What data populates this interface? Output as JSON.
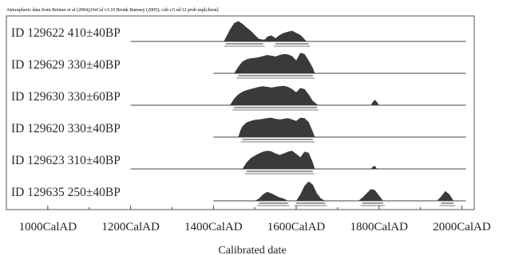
{
  "chart_data": {
    "type": "area",
    "title": "Atmospheric data from Reimer et al (2004);OxCal v3.10 Bronk Ramsey (2005); cub r:5 sd:12 prob usp[chron]",
    "xlabel": "Calibrated date",
    "ylabel": "",
    "x_unit": "CalAD",
    "xlim": [
      900,
      2030
    ],
    "x_ticks": [
      1000,
      1200,
      1400,
      1600,
      1800,
      2000
    ],
    "x_tick_labels": [
      "1000CalAD",
      "1200CalAD",
      "1400CalAD",
      "1600CalAD",
      "1800CalAD",
      "2000CalAD"
    ],
    "grid": false,
    "legend": "none",
    "colors": {
      "distribution": "#3a3a3a",
      "range_bar": "#777777",
      "axis": "#444444"
    },
    "series": [
      {
        "name": "ID 129622 410±40BP",
        "label": "ID 129622  410±40BP",
        "line_start": 1200,
        "x": [
          1425,
          1440,
          1450,
          1460,
          1470,
          1480,
          1490,
          1500,
          1510,
          1520,
          1525,
          1530,
          1540,
          1545,
          1550,
          1560,
          1570,
          1580,
          1590,
          1600,
          1610,
          1620,
          1625
        ],
        "y": [
          0,
          0.55,
          0.85,
          0.95,
          0.82,
          0.65,
          0.5,
          0.3,
          0.12,
          0.08,
          0.1,
          0.22,
          0.28,
          0.22,
          0.15,
          0.3,
          0.4,
          0.45,
          0.5,
          0.4,
          0.3,
          0.1,
          0
        ],
        "ranges": [
          [
            1430,
            1520
          ],
          [
            1550,
            1630
          ]
        ]
      },
      {
        "name": "ID 129629 330±40BP",
        "label": "ID 129629  330±40BP",
        "line_start": 1400,
        "x": [
          1450,
          1460,
          1470,
          1480,
          1490,
          1500,
          1510,
          1520,
          1530,
          1540,
          1550,
          1560,
          1570,
          1580,
          1590,
          1600,
          1610,
          1620,
          1630,
          1640,
          1645
        ],
        "y": [
          0,
          0.3,
          0.55,
          0.65,
          0.7,
          0.72,
          0.75,
          0.8,
          0.85,
          0.82,
          0.78,
          0.85,
          0.9,
          0.88,
          0.8,
          0.6,
          0.95,
          0.9,
          0.6,
          0.25,
          0
        ],
        "ranges": [
          [
            1460,
            1640
          ]
        ]
      },
      {
        "name": "ID 129630 330±60BP",
        "label": "ID 129630  330±60BP",
        "line_start": 1200,
        "x": [
          1440,
          1450,
          1460,
          1470,
          1480,
          1490,
          1500,
          1510,
          1520,
          1530,
          1540,
          1550,
          1560,
          1570,
          1580,
          1590,
          1600,
          1610,
          1620,
          1630,
          1640,
          1650,
          1655,
          1780,
          1785,
          1790,
          1795,
          1800
        ],
        "y": [
          0,
          0.3,
          0.5,
          0.62,
          0.7,
          0.75,
          0.8,
          0.85,
          0.88,
          0.85,
          0.82,
          0.85,
          0.88,
          0.9,
          0.85,
          0.75,
          0.6,
          0.8,
          0.75,
          0.5,
          0.2,
          0.05,
          0,
          0,
          0.15,
          0.25,
          0.15,
          0
        ],
        "ranges": [
          [
            1450,
            1650
          ]
        ]
      },
      {
        "name": "ID 129620 330±40BP",
        "label": "ID 129620  330±40BP",
        "line_start": 1400,
        "x": [
          1460,
          1465,
          1470,
          1480,
          1490,
          1500,
          1510,
          1520,
          1530,
          1540,
          1550,
          1560,
          1570,
          1580,
          1590,
          1600,
          1610,
          1620,
          1630,
          1640,
          1645
        ],
        "y": [
          0,
          0.3,
          0.5,
          0.68,
          0.75,
          0.8,
          0.82,
          0.85,
          0.88,
          0.9,
          0.85,
          0.82,
          0.85,
          0.88,
          0.82,
          0.75,
          0.9,
          0.88,
          0.7,
          0.25,
          0
        ],
        "ranges": [
          [
            1470,
            1640
          ]
        ]
      },
      {
        "name": "ID 129623 310±40BP",
        "label": "ID 129623  310±40BP",
        "line_start": 1200,
        "x": [
          1470,
          1480,
          1490,
          1500,
          1510,
          1520,
          1530,
          1540,
          1550,
          1560,
          1570,
          1580,
          1590,
          1600,
          1610,
          1620,
          1630,
          1640,
          1645,
          1780,
          1785,
          1790,
          1795
        ],
        "y": [
          0,
          0.3,
          0.5,
          0.62,
          0.72,
          0.8,
          0.85,
          0.82,
          0.72,
          0.65,
          0.72,
          0.8,
          0.85,
          0.7,
          0.55,
          0.8,
          0.75,
          0.3,
          0,
          0,
          0.1,
          0.15,
          0
        ],
        "ranges": [
          [
            1480,
            1640
          ]
        ]
      },
      {
        "name": "ID 129635 250±40BP",
        "label": "ID 129635  250±40BP",
        "line_start": 1400,
        "x": [
          1500,
          1510,
          1520,
          1530,
          1540,
          1550,
          1560,
          1570,
          1580,
          1600,
          1610,
          1620,
          1630,
          1640,
          1650,
          1660,
          1670,
          1750,
          1760,
          1770,
          1780,
          1790,
          1800,
          1810,
          1940,
          1950,
          1960,
          1970,
          1980
        ],
        "y": [
          0,
          0.1,
          0.3,
          0.42,
          0.35,
          0.25,
          0.15,
          0.1,
          0,
          0,
          0.3,
          0.7,
          0.9,
          0.75,
          0.35,
          0.1,
          0,
          0,
          0.15,
          0.35,
          0.55,
          0.5,
          0.25,
          0,
          0,
          0.2,
          0.45,
          0.3,
          0
        ],
        "ranges": [
          [
            1510,
            1580
          ],
          [
            1600,
            1670
          ],
          [
            1760,
            1810
          ],
          [
            1950,
            1980
          ]
        ]
      }
    ]
  }
}
